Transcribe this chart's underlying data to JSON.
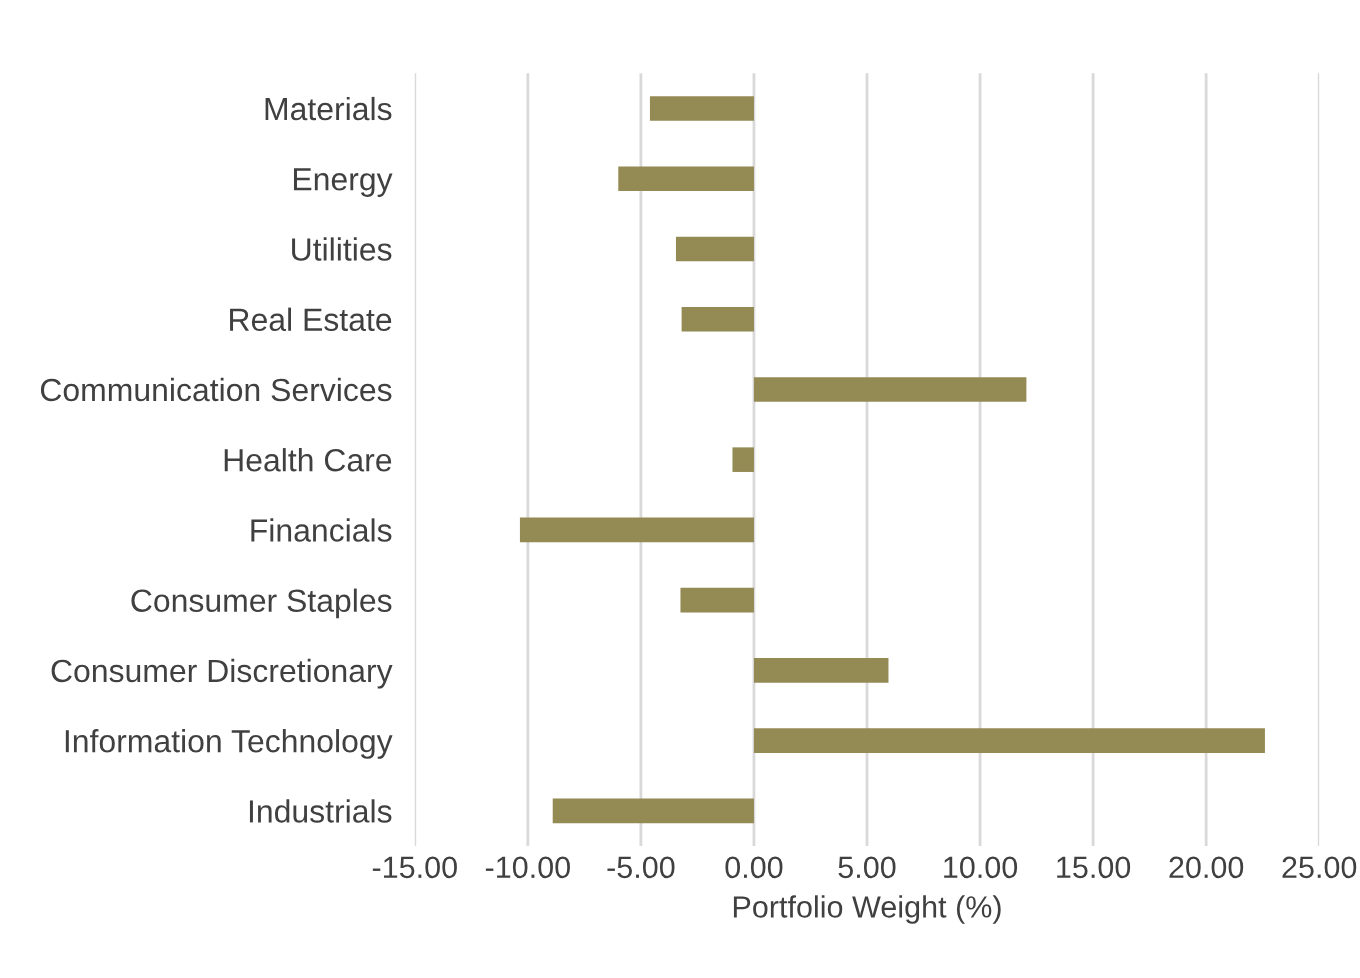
{
  "chart_data": {
    "type": "bar",
    "orientation": "horizontal",
    "xlabel": "Portfolio Weight (%)",
    "categories": [
      "Materials",
      "Energy",
      "Utilities",
      "Real Estate",
      "Communication Services",
      "Health Care",
      "Financials",
      "Consumer Staples",
      "Consumer Discretionary",
      "Information Technology",
      "Industrials"
    ],
    "values": [
      -4.6,
      -6.0,
      -3.45,
      -3.2,
      12.05,
      -0.95,
      -10.35,
      -3.25,
      5.95,
      22.6,
      -8.9
    ],
    "color": "#948a54",
    "xlim": [
      -15,
      25
    ],
    "xticks": [
      {
        "value": -15,
        "label": "-15.00"
      },
      {
        "value": -10,
        "label": "-10.00"
      },
      {
        "value": -5,
        "label": "-5.00"
      },
      {
        "value": 0,
        "label": "0.00"
      },
      {
        "value": 5,
        "label": "5.00"
      },
      {
        "value": 10,
        "label": "10.00"
      },
      {
        "value": 15,
        "label": "15.00"
      },
      {
        "value": 20,
        "label": "20.00"
      },
      {
        "value": 25,
        "label": "25.00"
      }
    ],
    "grid": "x"
  }
}
